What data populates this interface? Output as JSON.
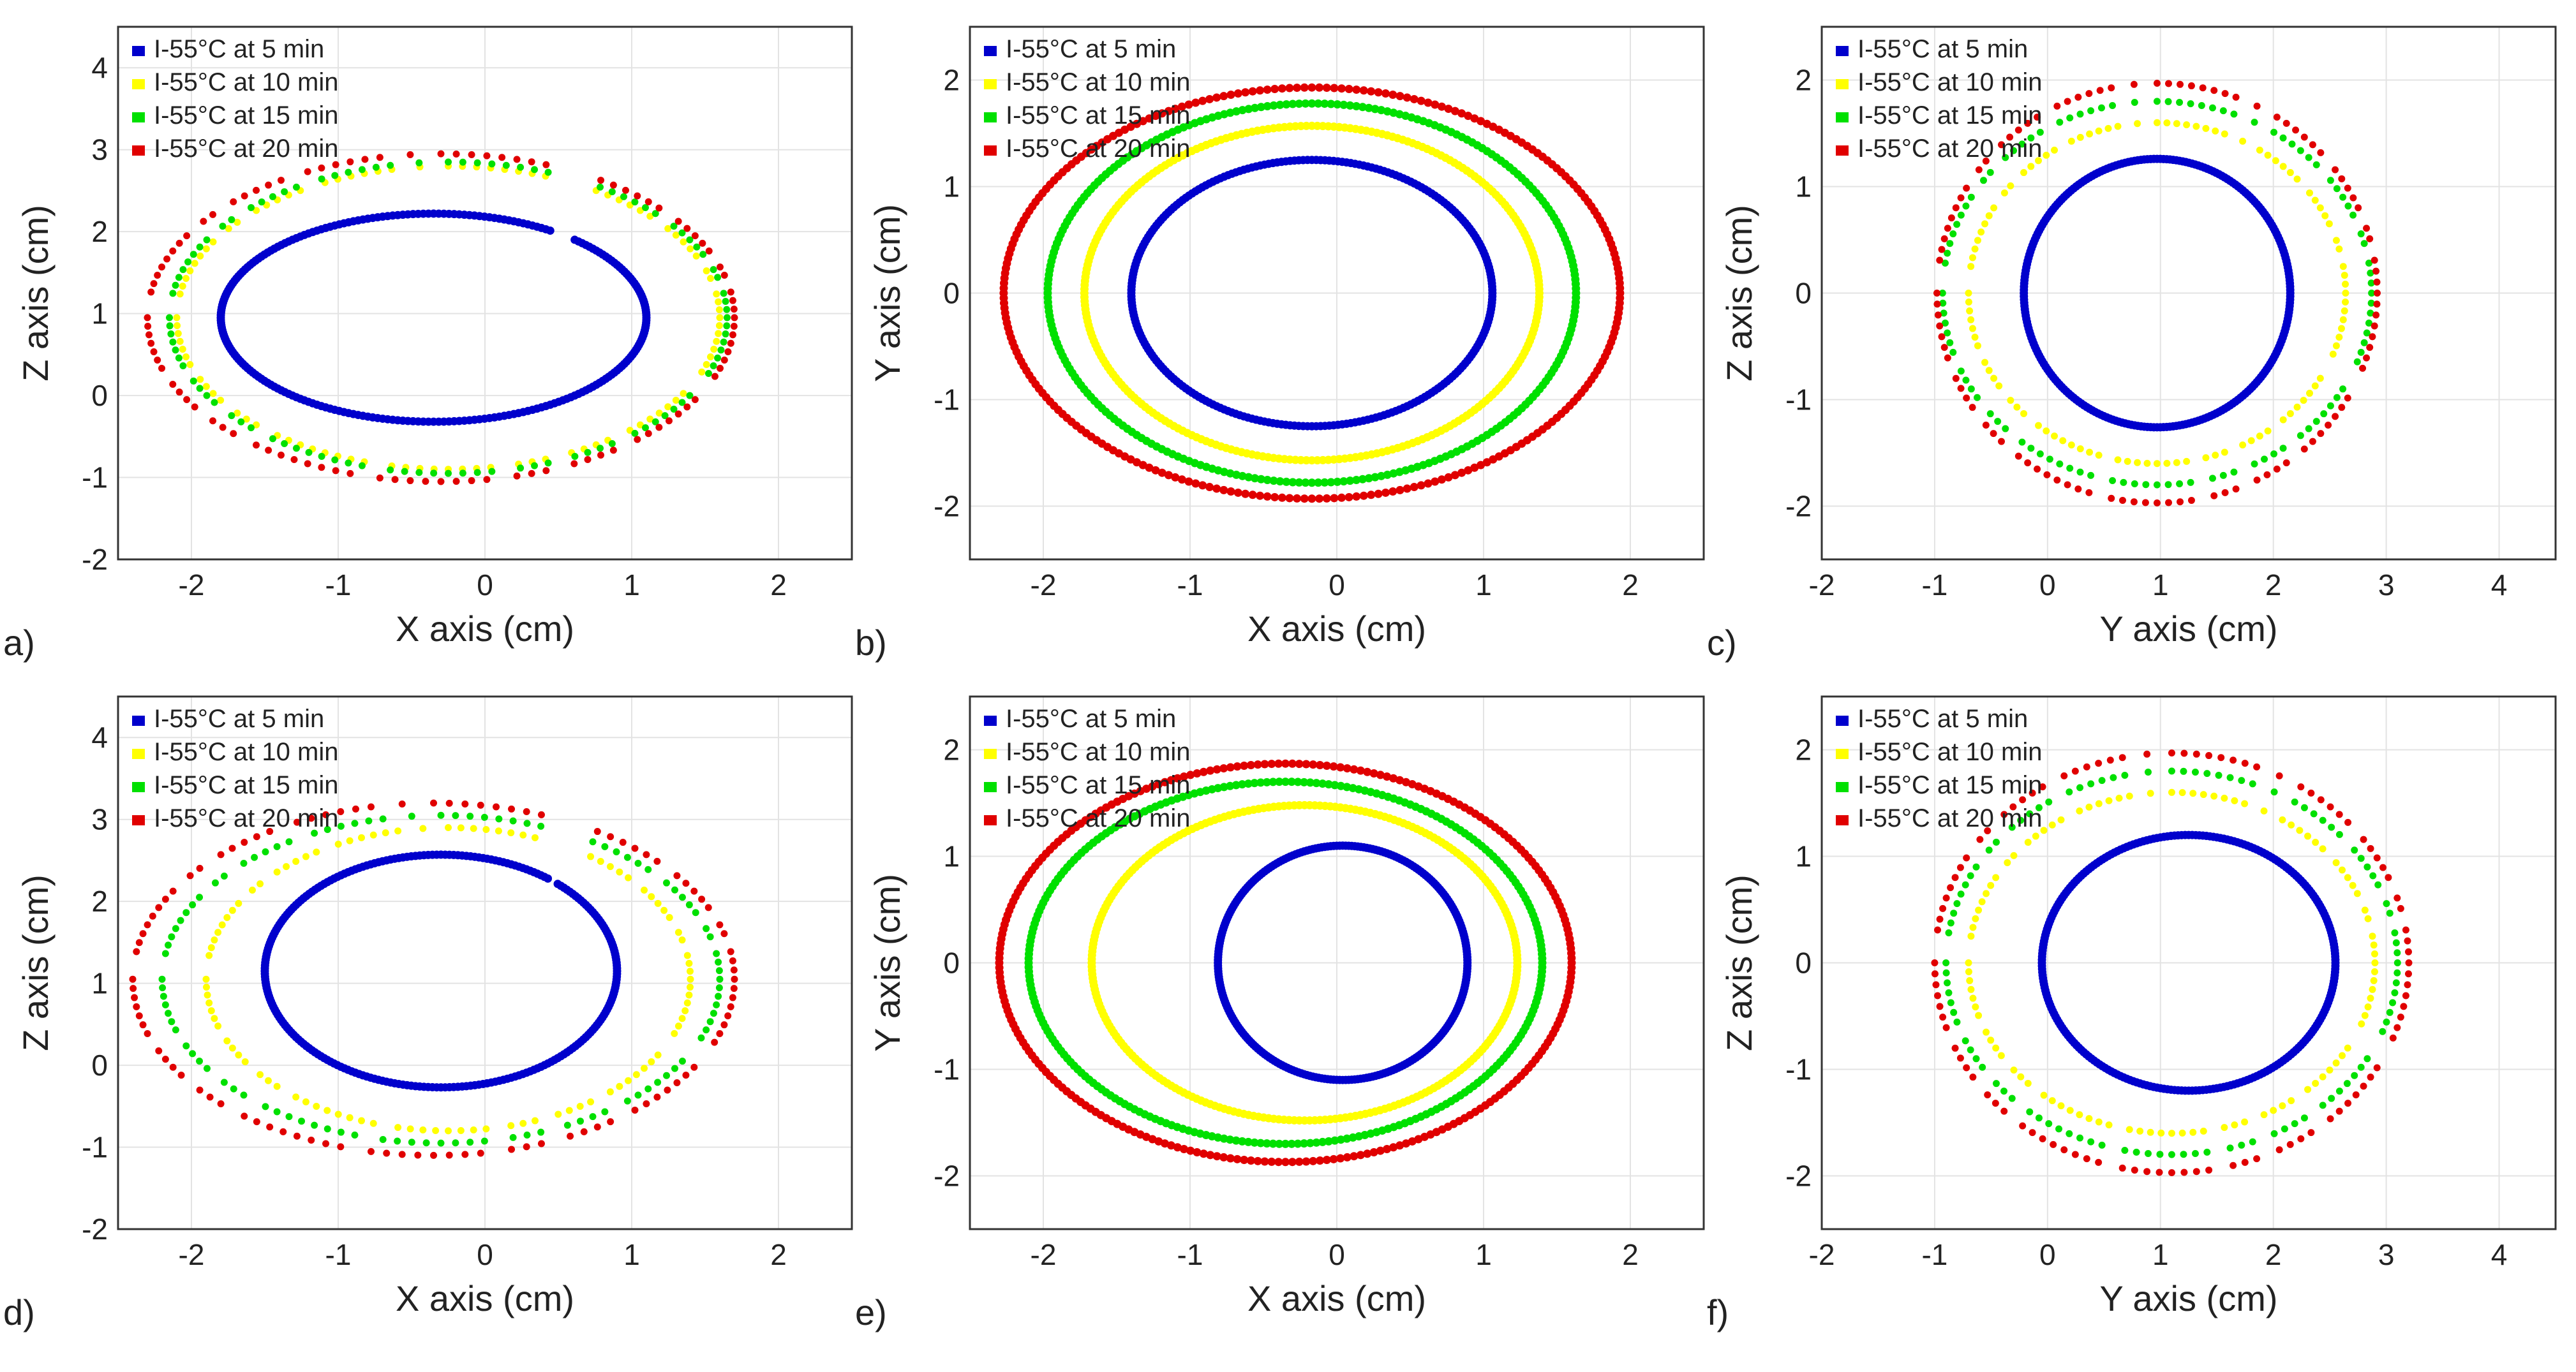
{
  "chart_data": [
    {
      "type": "scatter",
      "panel": "a)",
      "xlabel": "X axis (cm)",
      "ylabel": "Z axis (cm)",
      "xlim": [
        -2.5,
        2.5
      ],
      "ylim": [
        -2,
        4.5
      ],
      "xticks": [
        "-2",
        "-1",
        "0",
        "1",
        "2"
      ],
      "yticks": [
        "-2",
        "-1",
        "0",
        "1",
        "2",
        "3",
        "4"
      ],
      "xtickvals": [
        -2,
        -1,
        0,
        1,
        2
      ],
      "ytickvals": [
        -2,
        -1,
        0,
        1,
        2,
        3,
        4
      ],
      "grid": true,
      "legend_position": "top-left",
      "series": [
        {
          "name": "I-55°C at 5 min",
          "color": "#0000cc",
          "shape": "ellipse",
          "cx": -0.35,
          "cy": 0.95,
          "rx": 1.45,
          "ry": 1.27,
          "gap": [
            0.45,
            0.65
          ],
          "dense": true
        },
        {
          "name": "I-55°C at 10 min",
          "color": "#ffff00",
          "shape": "ellipse",
          "cx": -0.25,
          "cy": 0.95,
          "rx": 1.85,
          "ry": 1.85,
          "gap": [
            0.45,
            0.65
          ],
          "dense": false
        },
        {
          "name": "I-55°C at 15 min",
          "color": "#00e000",
          "shape": "ellipse",
          "cx": -0.25,
          "cy": 0.95,
          "rx": 1.9,
          "ry": 1.9,
          "gap": [
            0.45,
            0.65
          ],
          "dense": false
        },
        {
          "name": "I-55°C at 20 min",
          "color": "#e00000",
          "shape": "ellipse",
          "cx": -0.3,
          "cy": 0.95,
          "rx": 2.0,
          "ry": 2.0,
          "gap": [
            0.45,
            0.65
          ],
          "dense": false
        }
      ]
    },
    {
      "type": "scatter",
      "panel": "b)",
      "xlabel": "X axis (cm)",
      "ylabel": "Y axis (cm)",
      "xlim": [
        -2.5,
        2.5
      ],
      "ylim": [
        -2.5,
        2.5
      ],
      "xticks": [
        "-2",
        "-1",
        "0",
        "1",
        "2"
      ],
      "yticks": [
        "-2",
        "-1",
        "0",
        "1",
        "2"
      ],
      "xtickvals": [
        -2,
        -1,
        0,
        1,
        2
      ],
      "ytickvals": [
        -2,
        -1,
        0,
        1,
        2
      ],
      "grid": true,
      "legend_position": "top-left",
      "series": [
        {
          "name": "I-55°C at 5 min",
          "color": "#0000cc",
          "shape": "ellipse",
          "cx": -0.17,
          "cy": 0,
          "rx": 1.23,
          "ry": 1.25,
          "dense": true
        },
        {
          "name": "I-55°C at 10 min",
          "color": "#ffff00",
          "shape": "ellipse",
          "cx": -0.17,
          "cy": 0,
          "rx": 1.55,
          "ry": 1.57,
          "dense": true
        },
        {
          "name": "I-55°C at 15 min",
          "color": "#00e000",
          "shape": "ellipse",
          "cx": -0.17,
          "cy": 0,
          "rx": 1.8,
          "ry": 1.78,
          "dense": true
        },
        {
          "name": "I-55°C at 20 min",
          "color": "#e00000",
          "shape": "ellipse",
          "cx": -0.17,
          "cy": 0,
          "rx": 2.1,
          "ry": 1.93,
          "dense": true
        }
      ]
    },
    {
      "type": "scatter",
      "panel": "c)",
      "xlabel": "Y axis (cm)",
      "ylabel": "Z axis (cm)",
      "xlim": [
        -2,
        4.5
      ],
      "ylim": [
        -2.5,
        2.5
      ],
      "xticks": [
        "-2",
        "-1",
        "0",
        "1",
        "2",
        "3",
        "4"
      ],
      "yticks": [
        "-2",
        "-1",
        "0",
        "1",
        "2"
      ],
      "xtickvals": [
        -2,
        -1,
        0,
        1,
        2,
        3,
        4
      ],
      "ytickvals": [
        -2,
        -1,
        0,
        1,
        2
      ],
      "grid": true,
      "legend_position": "top-left",
      "series": [
        {
          "name": "I-55°C at 5 min",
          "color": "#0000cc",
          "shape": "ellipse",
          "cx": 0.97,
          "cy": 0,
          "rx": 1.18,
          "ry": 1.26,
          "dense": true
        },
        {
          "name": "I-55°C at 10 min",
          "color": "#ffff00",
          "shape": "ellipse",
          "cx": 0.97,
          "cy": 0,
          "rx": 1.67,
          "ry": 1.6,
          "dense": false
        },
        {
          "name": "I-55°C at 15 min",
          "color": "#00e000",
          "shape": "ellipse",
          "cx": 0.97,
          "cy": 0,
          "rx": 1.9,
          "ry": 1.8,
          "dense": false
        },
        {
          "name": "I-55°C at 20 min",
          "color": "#e00000",
          "shape": "ellipse",
          "cx": 0.97,
          "cy": 0,
          "rx": 1.95,
          "ry": 1.97,
          "dense": false
        }
      ]
    },
    {
      "type": "scatter",
      "panel": "d)",
      "xlabel": "X axis (cm)",
      "ylabel": "Z axis (cm)",
      "xlim": [
        -2.5,
        2.5
      ],
      "ylim": [
        -2,
        4.5
      ],
      "xticks": [
        "-2",
        "-1",
        "0",
        "1",
        "2"
      ],
      "yticks": [
        "-2",
        "-1",
        "0",
        "1",
        "2",
        "3",
        "4"
      ],
      "xtickvals": [
        -2,
        -1,
        0,
        1,
        2
      ],
      "ytickvals": [
        -2,
        -1,
        0,
        1,
        2,
        3,
        4
      ],
      "grid": true,
      "legend_position": "top-left",
      "series": [
        {
          "name": "I-55°C at 5 min",
          "color": "#0000cc",
          "shape": "ellipse",
          "cx": -0.3,
          "cy": 1.15,
          "rx": 1.2,
          "ry": 1.42,
          "gap": [
            0.45,
            0.65
          ],
          "dense": true
        },
        {
          "name": "I-55°C at 10 min",
          "color": "#ffff00",
          "shape": "ellipse",
          "cx": -0.25,
          "cy": 1.05,
          "rx": 1.65,
          "ry": 1.85,
          "gap": [
            0.45,
            0.65
          ],
          "dense": false
        },
        {
          "name": "I-55°C at 15 min",
          "color": "#00e000",
          "shape": "ellipse",
          "cx": -0.3,
          "cy": 1.05,
          "rx": 1.9,
          "ry": 2.0,
          "gap": [
            0.45,
            0.65
          ],
          "dense": false
        },
        {
          "name": "I-55°C at 20 min",
          "color": "#e00000",
          "shape": "ellipse",
          "cx": -0.35,
          "cy": 1.05,
          "rx": 2.05,
          "ry": 2.15,
          "gap": [
            0.45,
            0.65
          ],
          "dense": false
        }
      ]
    },
    {
      "type": "scatter",
      "panel": "e)",
      "xlabel": "X axis (cm)",
      "ylabel": "Y axis (cm)",
      "xlim": [
        -2.5,
        2.5
      ],
      "ylim": [
        -2.5,
        2.5
      ],
      "xticks": [
        "-2",
        "-1",
        "0",
        "1",
        "2"
      ],
      "yticks": [
        "-2",
        "-1",
        "0",
        "1",
        "2"
      ],
      "xtickvals": [
        -2,
        -1,
        0,
        1,
        2
      ],
      "ytickvals": [
        -2,
        -1,
        0,
        1,
        2
      ],
      "grid": true,
      "legend_position": "top-left",
      "series": [
        {
          "name": "I-55°C at 5 min",
          "color": "#0000cc",
          "shape": "ellipse",
          "cx": 0.04,
          "cy": 0,
          "rx": 0.85,
          "ry": 1.1,
          "dense": true
        },
        {
          "name": "I-55°C at 10 min",
          "color": "#ffff00",
          "shape": "ellipse",
          "cx": -0.22,
          "cy": 0,
          "rx": 1.45,
          "ry": 1.48,
          "dense": true
        },
        {
          "name": "I-55°C at 15 min",
          "color": "#00e000",
          "shape": "ellipse",
          "cx": -0.35,
          "cy": 0,
          "rx": 1.75,
          "ry": 1.7,
          "dense": true
        },
        {
          "name": "I-55°C at 20 min",
          "color": "#e00000",
          "shape": "ellipse",
          "cx": -0.35,
          "cy": 0,
          "rx": 1.95,
          "ry": 1.87,
          "dense": true
        }
      ]
    },
    {
      "type": "scatter",
      "panel": "f)",
      "xlabel": "Y axis (cm)",
      "ylabel": "Z axis (cm)",
      "xlim": [
        -2,
        4.5
      ],
      "ylim": [
        -2.5,
        2.5
      ],
      "xticks": [
        "-2",
        "-1",
        "0",
        "1",
        "2",
        "3",
        "4"
      ],
      "yticks": [
        "-2",
        "-1",
        "0",
        "1",
        "2"
      ],
      "xtickvals": [
        -2,
        -1,
        0,
        1,
        2,
        3,
        4
      ],
      "ytickvals": [
        -2,
        -1,
        0,
        1,
        2
      ],
      "grid": true,
      "legend_position": "top-left",
      "series": [
        {
          "name": "I-55°C at 5 min",
          "color": "#0000cc",
          "shape": "ellipse",
          "cx": 1.25,
          "cy": 0,
          "rx": 1.3,
          "ry": 1.2,
          "dense": true
        },
        {
          "name": "I-55°C at 10 min",
          "color": "#ffff00",
          "shape": "ellipse",
          "cx": 1.1,
          "cy": 0,
          "rx": 1.8,
          "ry": 1.6,
          "dense": false
        },
        {
          "name": "I-55°C at 15 min",
          "color": "#00e000",
          "shape": "ellipse",
          "cx": 1.1,
          "cy": 0,
          "rx": 2.0,
          "ry": 1.8,
          "dense": false
        },
        {
          "name": "I-55°C at 20 min",
          "color": "#e00000",
          "shape": "ellipse",
          "cx": 1.1,
          "cy": 0,
          "rx": 2.1,
          "ry": 1.97,
          "dense": false
        }
      ]
    }
  ]
}
